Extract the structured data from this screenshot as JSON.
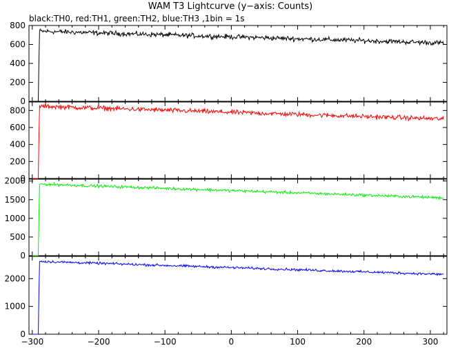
{
  "title": "WAM T3 Lightcurve (y−axis: Counts)",
  "subtitle": "black:TH0, red:TH1, green:TH2, blue:TH3 ,1bin = 1s",
  "chart_data": [
    {
      "type": "line",
      "series": [
        {
          "name": "TH0",
          "color": "#000000"
        }
      ],
      "xlim": [
        -305,
        325
      ],
      "ylim": [
        0,
        800
      ],
      "yticks": [
        0,
        200,
        400,
        600,
        800
      ],
      "onset_x": -290,
      "level_start": 740,
      "level_end": 615,
      "noise": 22
    },
    {
      "type": "line",
      "series": [
        {
          "name": "TH1",
          "color": "#ff0000"
        }
      ],
      "xlim": [
        -305,
        325
      ],
      "ylim": [
        0,
        900
      ],
      "yticks": [
        0,
        200,
        400,
        600,
        800
      ],
      "onset_x": -290,
      "level_start": 850,
      "level_end": 700,
      "noise": 24
    },
    {
      "type": "line",
      "series": [
        {
          "name": "TH2",
          "color": "#00ee00"
        }
      ],
      "xlim": [
        -305,
        325
      ],
      "ylim": [
        0,
        2050
      ],
      "yticks": [
        0,
        500,
        1000,
        1500,
        2000
      ],
      "onset_x": -290,
      "level_start": 1920,
      "level_end": 1550,
      "noise": 32
    },
    {
      "type": "line",
      "series": [
        {
          "name": "TH3",
          "color": "#0000ff"
        }
      ],
      "xlim": [
        -305,
        325
      ],
      "ylim": [
        0,
        2800
      ],
      "yticks": [
        0,
        1000,
        2000
      ],
      "onset_x": -290,
      "level_start": 2620,
      "level_end": 2150,
      "noise": 38
    }
  ],
  "xaxis": {
    "ticks": [
      -300,
      -200,
      -100,
      0,
      100,
      200,
      300
    ],
    "labels": [
      "−300",
      "−200",
      "−100",
      "0",
      "100",
      "200",
      "300"
    ]
  }
}
